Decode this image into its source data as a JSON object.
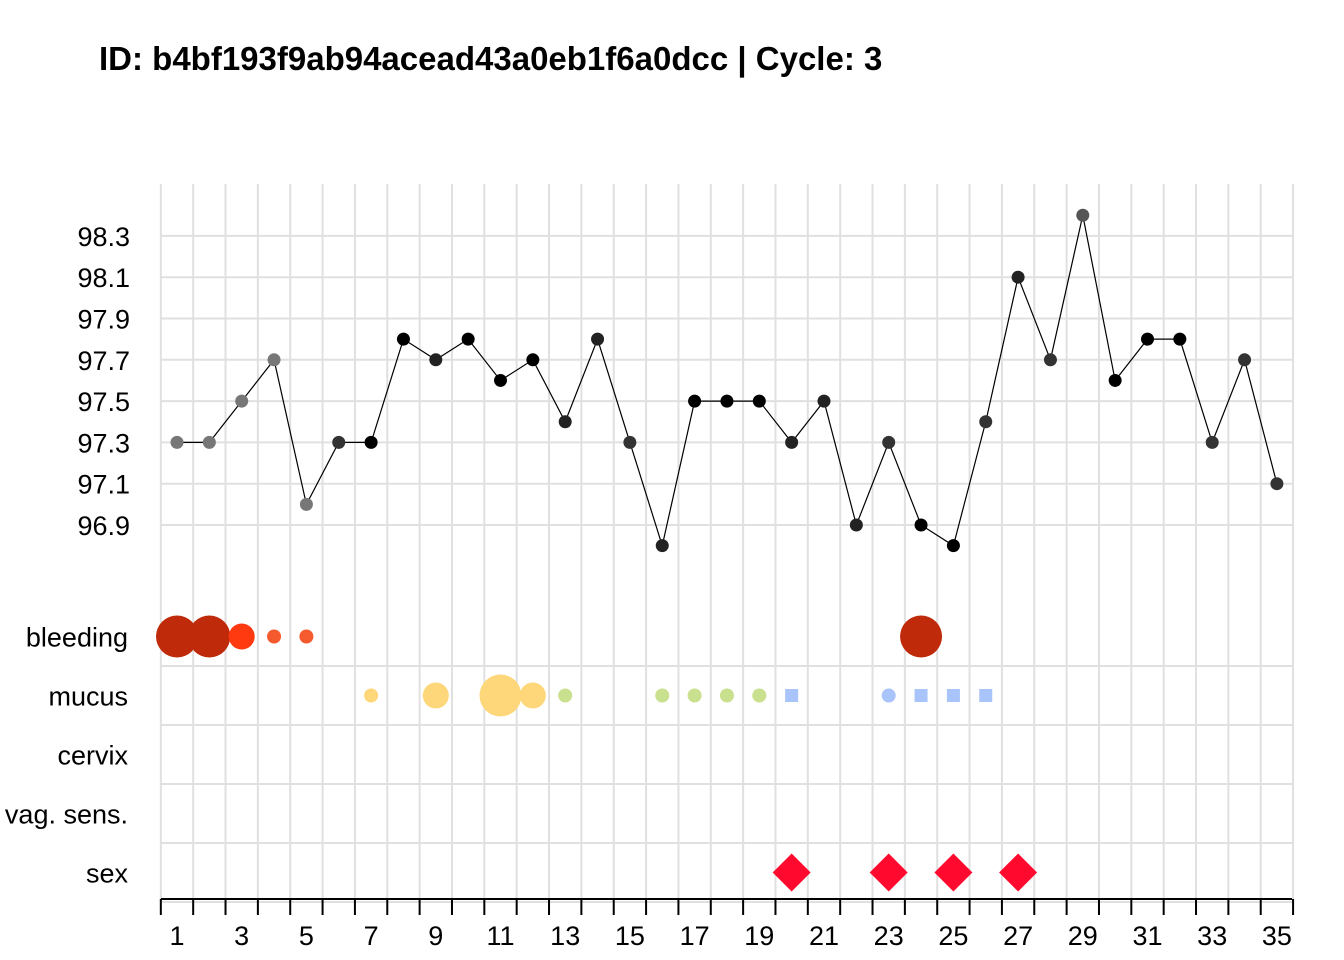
{
  "title": "ID: b4bf193f9ab94acead43a0eb1f6a0dcc | Cycle: 3",
  "chart_data": {
    "type": "line",
    "x_range": [
      1,
      35
    ],
    "x_ticks": [
      1,
      3,
      5,
      7,
      9,
      11,
      13,
      15,
      17,
      19,
      21,
      23,
      25,
      27,
      29,
      31,
      33,
      35
    ],
    "y_range": [
      96.8,
      98.4
    ],
    "y_ticks": [
      96.9,
      97.1,
      97.3,
      97.5,
      97.7,
      97.9,
      98.1,
      98.3
    ],
    "grid": true,
    "temperature": {
      "days": [
        1,
        2,
        3,
        4,
        5,
        6,
        7,
        8,
        9,
        10,
        11,
        12,
        13,
        14,
        15,
        16,
        17,
        18,
        19,
        20,
        21,
        22,
        23,
        24,
        25,
        26,
        27,
        28,
        29,
        30,
        31,
        32,
        33,
        34,
        35
      ],
      "values": [
        97.3,
        97.3,
        97.5,
        97.7,
        97.0,
        97.3,
        97.3,
        97.8,
        97.7,
        97.8,
        97.6,
        97.7,
        97.4,
        97.8,
        97.3,
        96.8,
        97.5,
        97.5,
        97.5,
        97.3,
        97.5,
        96.9,
        97.3,
        96.9,
        96.8,
        97.4,
        98.1,
        97.7,
        98.4,
        97.6,
        97.8,
        97.8,
        97.3,
        97.7,
        97.1
      ],
      "colors": [
        "#777777",
        "#777777",
        "#777777",
        "#777777",
        "#777777",
        "#333333",
        "#000000",
        "#000000",
        "#222222",
        "#000000",
        "#000000",
        "#000000",
        "#222222",
        "#222222",
        "#333333",
        "#222222",
        "#000000",
        "#000000",
        "#000000",
        "#222222",
        "#222222",
        "#222222",
        "#333333",
        "#000000",
        "#000000",
        "#333333",
        "#222222",
        "#333333",
        "#555555",
        "#000000",
        "#000000",
        "#000000",
        "#333333",
        "#333333",
        "#333333"
      ]
    },
    "rows": [
      {
        "label": "bleeding",
        "marks": [
          {
            "day": 1,
            "shape": "circle",
            "level": 3,
            "color": "#BF2A0A"
          },
          {
            "day": 2,
            "shape": "circle",
            "level": 3,
            "color": "#BF2A0A"
          },
          {
            "day": 3,
            "shape": "circle",
            "level": 2,
            "color": "#FF3A10"
          },
          {
            "day": 4,
            "shape": "circle",
            "level": 1,
            "color": "#F45A2E"
          },
          {
            "day": 5,
            "shape": "circle",
            "level": 1,
            "color": "#F45A2E"
          },
          {
            "day": 24,
            "shape": "circle",
            "level": 3,
            "color": "#BF2A0A"
          }
        ]
      },
      {
        "label": "mucus",
        "marks": [
          {
            "day": 7,
            "shape": "circle",
            "level": 1,
            "color": "#FDD77A"
          },
          {
            "day": 9,
            "shape": "circle",
            "level": 2,
            "color": "#FDD77A"
          },
          {
            "day": 11,
            "shape": "circle",
            "level": 3,
            "color": "#FDD77A"
          },
          {
            "day": 12,
            "shape": "circle",
            "level": 2,
            "color": "#FDD77A"
          },
          {
            "day": 13,
            "shape": "circle",
            "level": 1,
            "color": "#C9E08E"
          },
          {
            "day": 16,
            "shape": "circle",
            "level": 1,
            "color": "#C9E08E"
          },
          {
            "day": 17,
            "shape": "circle",
            "level": 1,
            "color": "#C9E08E"
          },
          {
            "day": 18,
            "shape": "circle",
            "level": 1,
            "color": "#C9E08E"
          },
          {
            "day": 19,
            "shape": "circle",
            "level": 1,
            "color": "#C9E08E"
          },
          {
            "day": 20,
            "shape": "square",
            "level": 1,
            "color": "#A8C4FA"
          },
          {
            "day": 23,
            "shape": "circle",
            "level": 1,
            "color": "#A8C4FA"
          },
          {
            "day": 24,
            "shape": "square",
            "level": 1,
            "color": "#A8C4FA"
          },
          {
            "day": 25,
            "shape": "square",
            "level": 1,
            "color": "#A8C4FA"
          },
          {
            "day": 26,
            "shape": "square",
            "level": 1,
            "color": "#A8C4FA"
          }
        ]
      },
      {
        "label": "cervix",
        "marks": []
      },
      {
        "label": "vag. sens.",
        "marks": []
      },
      {
        "label": "sex",
        "marks": [
          {
            "day": 20,
            "shape": "diamond",
            "level": 2,
            "color": "#FF0A2E"
          },
          {
            "day": 23,
            "shape": "diamond",
            "level": 2,
            "color": "#FF0A2E"
          },
          {
            "day": 25,
            "shape": "diamond",
            "level": 2,
            "color": "#FF0A2E"
          },
          {
            "day": 27,
            "shape": "diamond",
            "level": 2,
            "color": "#FF0A2E"
          }
        ]
      }
    ]
  }
}
